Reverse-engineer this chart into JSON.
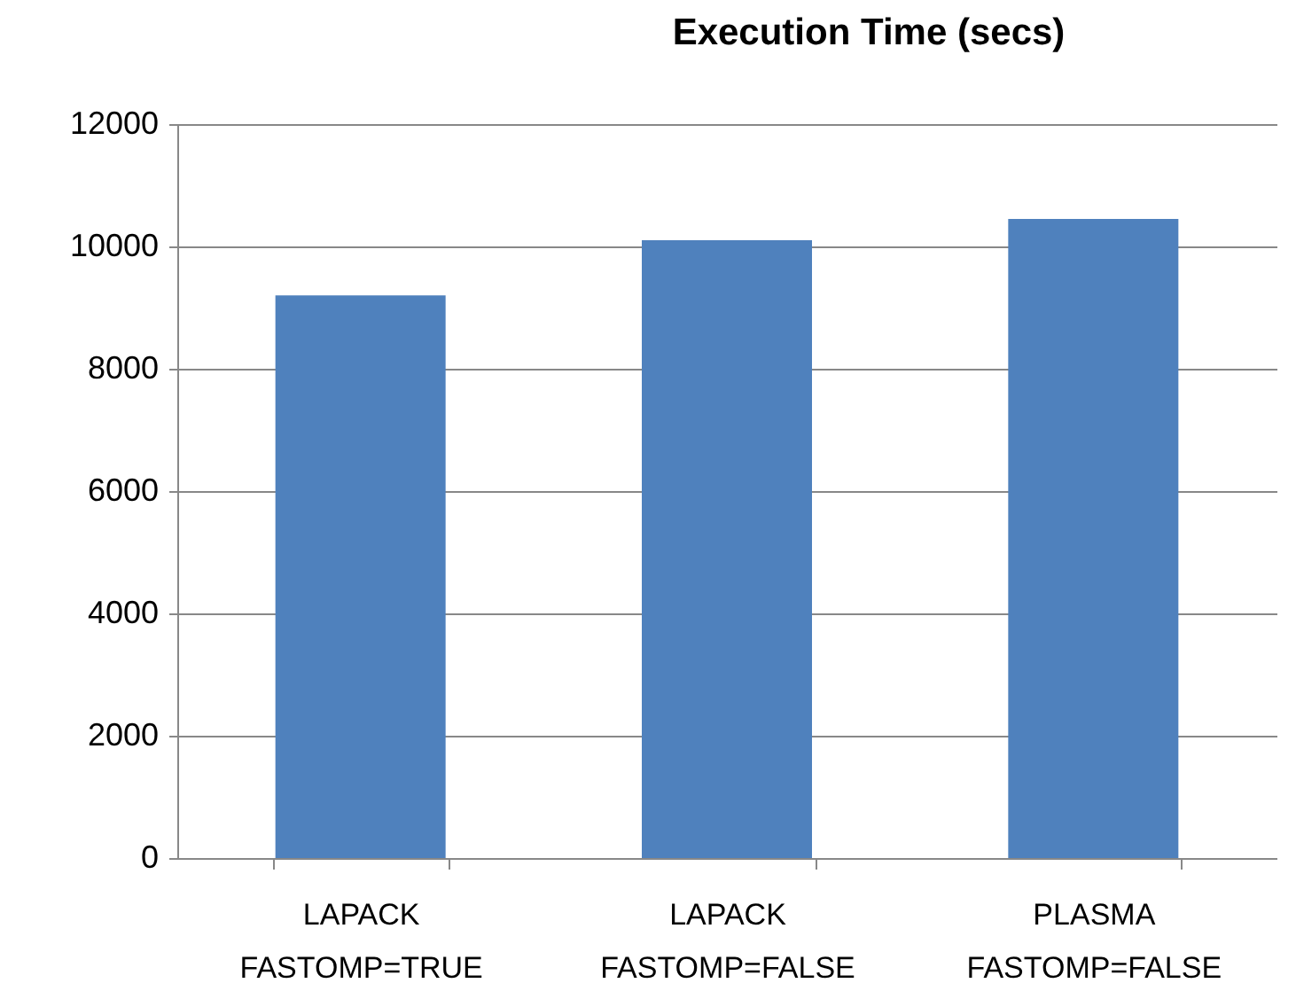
{
  "chart_data": {
    "type": "bar",
    "title": "Execution Time (secs)",
    "categories": [
      "LAPACK\nFASTOMP=TRUE",
      "LAPACK\nFASTOMP=FALSE",
      "PLASMA\nFASTOMP=FALSE"
    ],
    "values": [
      9200,
      10100,
      10450
    ],
    "color": "#4f81bd",
    "ylim": [
      0,
      12000
    ],
    "yticks": [
      0,
      2000,
      4000,
      6000,
      8000,
      10000,
      12000
    ],
    "grid": "y"
  }
}
